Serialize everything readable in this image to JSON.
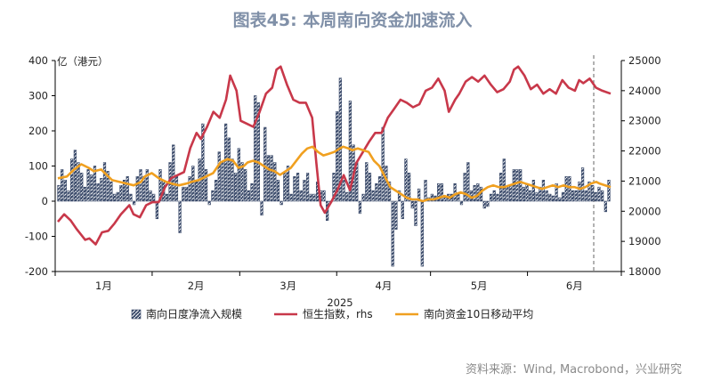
{
  "title": "图表45: 本周南向资金加速流入",
  "source": "资料来源：Wind, Macrobond，兴业研究",
  "chart_data": {
    "type": "bar+line",
    "ylabel_left": "亿（港元）",
    "xlabel": "2025",
    "yleft": {
      "min": -200,
      "max": 400,
      "ticks": [
        -200,
        -100,
        0,
        100,
        200,
        300,
        400
      ]
    },
    "yright": {
      "min": 18000,
      "max": 25000,
      "ticks": [
        18000,
        19000,
        20000,
        21000,
        22000,
        23000,
        24000,
        25000
      ]
    },
    "x_ticks": [
      "1月",
      "2月",
      "3月",
      "4月",
      "5月",
      "6月"
    ],
    "legend": [
      "南向日度净流入规模",
      "恒生指数，rhs",
      "南向资金10日移动平均"
    ],
    "colors": {
      "bar_fill": "#3a4a6a",
      "bar_stripe": "#ffffff",
      "hsi": "#c8384a",
      "ma10": "#f0a020",
      "grid": "#000000"
    },
    "series": [
      {
        "name": "南向日度净流入规模",
        "type": "bar",
        "axis": "left",
        "values": [
          45,
          90,
          60,
          30,
          120,
          145,
          110,
          80,
          40,
          90,
          75,
          100,
          50,
          65,
          110,
          85,
          55,
          20,
          25,
          45,
          60,
          70,
          20,
          -10,
          70,
          90,
          70,
          90,
          30,
          20,
          -50,
          90,
          60,
          20,
          110,
          160,
          70,
          -90,
          40,
          40,
          70,
          100,
          55,
          120,
          220,
          90,
          -10,
          30,
          60,
          140,
          110,
          220,
          180,
          120,
          80,
          150,
          110,
          90,
          30,
          50,
          300,
          280,
          -40,
          210,
          130,
          130,
          110,
          60,
          -10,
          80,
          100,
          20,
          70,
          80,
          30,
          60,
          80,
          20,
          20,
          55,
          30,
          30,
          -55,
          0,
          80,
          255,
          350,
          60,
          25,
          285,
          160,
          110,
          -35,
          20,
          110,
          80,
          30,
          50,
          70,
          210,
          100,
          55,
          -185,
          -80,
          30,
          -50,
          120,
          80,
          -20,
          -70,
          35,
          -185,
          60,
          10,
          20,
          15,
          50,
          50,
          10,
          20,
          20,
          50,
          20,
          -10,
          80,
          110,
          30,
          45,
          50,
          40,
          -20,
          -15,
          20,
          30,
          20,
          80,
          120,
          40,
          45,
          90,
          90,
          90,
          40,
          50,
          30,
          60,
          25,
          40,
          60,
          30,
          20,
          15,
          50,
          10,
          25,
          70,
          70,
          30,
          30,
          55,
          95,
          30,
          55,
          45,
          25,
          40,
          30,
          -30,
          60
        ],
        "x_start_day": 0,
        "x_end_day": 175
      },
      {
        "name": "恒生指数，rhs",
        "type": "line",
        "axis": "right",
        "points": [
          [
            0,
            19650
          ],
          [
            3,
            19900
          ],
          [
            6,
            19700
          ],
          [
            9,
            19400
          ],
          [
            13,
            19050
          ],
          [
            15,
            19100
          ],
          [
            18,
            18900
          ],
          [
            21,
            19300
          ],
          [
            24,
            19350
          ],
          [
            27,
            19600
          ],
          [
            30,
            19900
          ],
          [
            34,
            20200
          ],
          [
            36,
            19900
          ],
          [
            39,
            19800
          ],
          [
            42,
            20200
          ],
          [
            45,
            20300
          ],
          [
            48,
            20300
          ],
          [
            51,
            20800
          ],
          [
            54,
            21100
          ],
          [
            57,
            21200
          ],
          [
            60,
            21300
          ],
          [
            63,
            22100
          ],
          [
            66,
            22600
          ],
          [
            68,
            22400
          ],
          [
            71,
            22800
          ],
          [
            74,
            23300
          ],
          [
            77,
            23100
          ],
          [
            80,
            23700
          ],
          [
            82,
            24500
          ],
          [
            85,
            24000
          ],
          [
            87,
            23000
          ],
          [
            90,
            22900
          ],
          [
            93,
            22800
          ],
          [
            96,
            23300
          ],
          [
            99,
            23900
          ],
          [
            102,
            24100
          ],
          [
            104,
            24700
          ],
          [
            106,
            24800
          ],
          [
            109,
            24200
          ],
          [
            112,
            23700
          ],
          [
            115,
            23600
          ],
          [
            118,
            23600
          ],
          [
            121,
            23100
          ],
          [
            123,
            21600
          ],
          [
            125,
            20200
          ],
          [
            127,
            19950
          ],
          [
            130,
            20300
          ],
          [
            133,
            20700
          ],
          [
            136,
            21200
          ],
          [
            139,
            20700
          ],
          [
            142,
            21600
          ],
          [
            145,
            21950
          ],
          [
            148,
            22300
          ],
          [
            151,
            22600
          ],
          [
            154,
            22600
          ],
          [
            157,
            23100
          ],
          [
            160,
            23400
          ],
          [
            163,
            23700
          ],
          [
            166,
            23600
          ],
          [
            169,
            23450
          ],
          [
            172,
            23550
          ],
          [
            175,
            24000
          ],
          [
            178,
            24100
          ],
          [
            181,
            24400
          ],
          [
            184,
            24000
          ],
          [
            186,
            23300
          ],
          [
            189,
            23700
          ],
          [
            191,
            23900
          ],
          [
            194,
            24300
          ],
          [
            197,
            24450
          ],
          [
            200,
            24300
          ],
          [
            203,
            24500
          ],
          [
            206,
            24200
          ],
          [
            209,
            23950
          ],
          [
            212,
            24050
          ],
          [
            215,
            24300
          ],
          [
            217,
            24700
          ],
          [
            219,
            24800
          ],
          [
            222,
            24500
          ],
          [
            225,
            24050
          ],
          [
            228,
            24200
          ],
          [
            231,
            23900
          ],
          [
            234,
            24050
          ],
          [
            237,
            23900
          ],
          [
            240,
            24350
          ],
          [
            243,
            24100
          ],
          [
            246,
            24000
          ],
          [
            248,
            24350
          ],
          [
            250,
            24250
          ],
          [
            253,
            24400
          ],
          [
            256,
            24100
          ],
          [
            259,
            24000
          ],
          [
            263,
            23900
          ]
        ]
      },
      {
        "name": "南向资金10日移动平均",
        "type": "line",
        "axis": "left",
        "points": [
          [
            0,
            65
          ],
          [
            5,
            70
          ],
          [
            9,
            90
          ],
          [
            13,
            105
          ],
          [
            17,
            95
          ],
          [
            20,
            85
          ],
          [
            24,
            90
          ],
          [
            27,
            75
          ],
          [
            30,
            60
          ],
          [
            34,
            55
          ],
          [
            38,
            50
          ],
          [
            42,
            45
          ],
          [
            46,
            55
          ],
          [
            48,
            70
          ],
          [
            52,
            80
          ],
          [
            56,
            65
          ],
          [
            60,
            55
          ],
          [
            63,
            50
          ],
          [
            67,
            45
          ],
          [
            71,
            50
          ],
          [
            74,
            55
          ],
          [
            78,
            60
          ],
          [
            82,
            70
          ],
          [
            86,
            80
          ],
          [
            90,
            110
          ],
          [
            94,
            120
          ],
          [
            97,
            115
          ],
          [
            100,
            95
          ],
          [
            103,
            100
          ],
          [
            105,
            110
          ],
          [
            108,
            115
          ],
          [
            111,
            110
          ],
          [
            114,
            100
          ],
          [
            117,
            90
          ],
          [
            120,
            85
          ],
          [
            123,
            75
          ],
          [
            126,
            85
          ],
          [
            129,
            95
          ],
          [
            132,
            115
          ],
          [
            135,
            135
          ],
          [
            138,
            150
          ],
          [
            141,
            155
          ],
          [
            144,
            140
          ],
          [
            147,
            130
          ],
          [
            150,
            135
          ],
          [
            153,
            140
          ],
          [
            156,
            150
          ],
          [
            158,
            155
          ],
          [
            161,
            150
          ],
          [
            163,
            145
          ],
          [
            166,
            150
          ],
          [
            169,
            145
          ],
          [
            172,
            140
          ],
          [
            175,
            115
          ],
          [
            178,
            100
          ],
          [
            181,
            70
          ],
          [
            184,
            40
          ],
          [
            187,
            30
          ],
          [
            190,
            20
          ],
          [
            193,
            10
          ],
          [
            196,
            5
          ],
          [
            199,
            5
          ],
          [
            202,
            0
          ],
          [
            205,
            5
          ],
          [
            208,
            5
          ],
          [
            211,
            10
          ],
          [
            214,
            15
          ],
          [
            217,
            10
          ],
          [
            220,
            20
          ],
          [
            223,
            25
          ],
          [
            226,
            20
          ],
          [
            229,
            10
          ],
          [
            232,
            15
          ],
          [
            235,
            30
          ],
          [
            238,
            40
          ],
          [
            241,
            45
          ],
          [
            244,
            40
          ],
          [
            247,
            40
          ],
          [
            250,
            45
          ],
          [
            253,
            50
          ],
          [
            256,
            55
          ],
          [
            259,
            50
          ],
          [
            262,
            45
          ],
          [
            265,
            40
          ],
          [
            268,
            35
          ],
          [
            271,
            40
          ],
          [
            274,
            45
          ],
          [
            277,
            40
          ],
          [
            280,
            45
          ],
          [
            283,
            40
          ],
          [
            286,
            40
          ],
          [
            289,
            35
          ],
          [
            292,
            40
          ],
          [
            295,
            50
          ],
          [
            298,
            55
          ],
          [
            300,
            50
          ],
          [
            303,
            45
          ],
          [
            306,
            40
          ]
        ]
      }
    ],
    "vline_marker": "dashed"
  }
}
